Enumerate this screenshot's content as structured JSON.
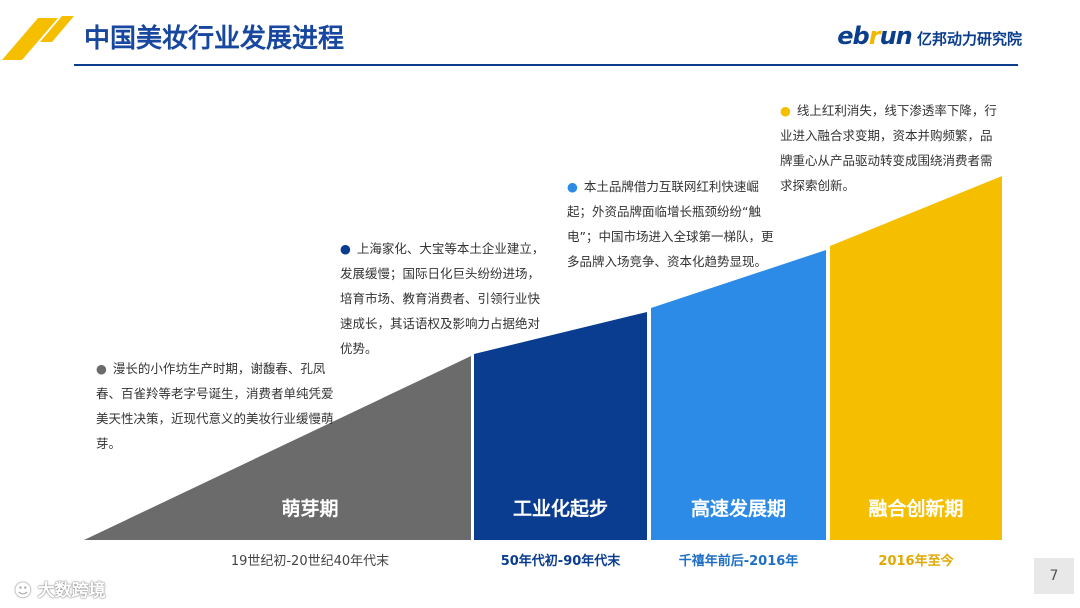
{
  "header": {
    "title": "中国美妆行业发展进程",
    "brand_word_left": "eb",
    "brand_word_r": "r",
    "brand_word_right": "un",
    "brand_cn": "亿邦动力研究院"
  },
  "stages": [
    {
      "label": "萌芽期",
      "era": "19世纪初-20世纪40年代末",
      "color": "#6b6b6b",
      "era_color": "#444444",
      "desc": "漫长的小作坊生产时期，谢馥春、孔凤春、百雀羚等老字号诞生，消费者单纯凭爱美天性决策，近现代意义的美妆行业缓慢萌芽。"
    },
    {
      "label": "工业化起步",
      "era": "50年代初-90年代末",
      "color": "#0a3d8f",
      "era_color": "#0a3d8f",
      "desc": "上海家化、大宝等本土企业建立，发展缓慢；国际日化巨头纷纷进场，培育市场、教育消费者、引领行业快速成长，其话语权及影响力占据绝对优势。"
    },
    {
      "label": "高速发展期",
      "era": "千禧年前后-2016年",
      "color": "#2b8be6",
      "era_color": "#1f6fc4",
      "desc": "本土品牌借力互联网红利快速崛起；外资品牌面临增长瓶颈纷纷“触电”；中国市场进入全球第一梯队，更多品牌入场竞争、资本化趋势显现。"
    },
    {
      "label": "融合创新期",
      "era": "2016年至今",
      "color": "#f5bf00",
      "era_color": "#e0a800",
      "desc": "线上红利消失，线下渗透率下降，行业进入融合求变期，资本并购频繁，品牌重心从产品驱动转变成围绕消费者需求探索创新。"
    }
  ],
  "footer": {
    "watermark": "大数跨境",
    "page_number": "7"
  }
}
